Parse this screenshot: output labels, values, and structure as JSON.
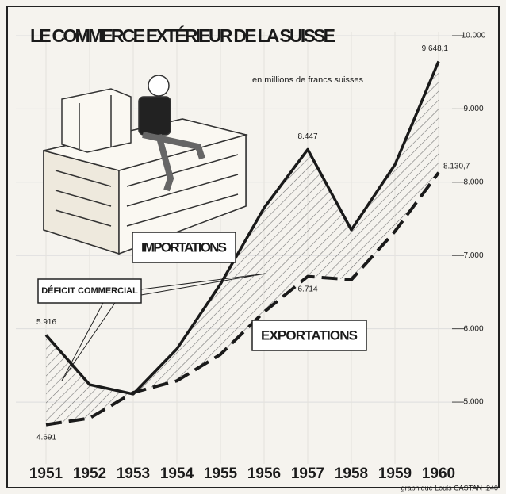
{
  "chart_data": {
    "type": "line",
    "title": "LE COMMERCE EXTÉRIEUR DE LA SUISSE",
    "subtitle": "en millions de francs suisses",
    "annotations": [
      "DÉFICIT COMMERCIAL"
    ],
    "credit": "graphique Louis CASTAN .240",
    "categories": [
      "1951",
      "1952",
      "1953",
      "1954",
      "1955",
      "1956",
      "1957",
      "1958",
      "1959",
      "1960"
    ],
    "series": [
      {
        "name": "IMPORTATIONS",
        "color": "#1a1a1a",
        "values": [
          5916,
          5238,
          5110,
          5725,
          6610,
          7650,
          8447,
          7350,
          8240,
          9648.1
        ],
        "value_labels": [
          "5.916",
          null,
          null,
          null,
          null,
          null,
          "8.447",
          null,
          null,
          "9.648,1"
        ]
      },
      {
        "name": "EXPORTATIONS",
        "color": "#1a1a1a",
        "values": [
          4691,
          4780,
          5130,
          5290,
          5650,
          6230,
          6714,
          6670,
          7330,
          8130.7
        ],
        "value_labels": [
          "4.691",
          null,
          null,
          null,
          null,
          null,
          "6.714",
          null,
          null,
          "8.130,7"
        ]
      }
    ],
    "ylim": [
      4200,
      10400
    ],
    "yticks": [
      {
        "value": 5000,
        "label": "5.000"
      },
      {
        "value": 6000,
        "label": "6.000"
      },
      {
        "value": 7000,
        "label": "7.000"
      },
      {
        "value": 8000,
        "label": "8.000"
      },
      {
        "value": 9000,
        "label": "9.000"
      },
      {
        "value": 10000,
        "label": "10.000"
      }
    ],
    "grid": true
  }
}
